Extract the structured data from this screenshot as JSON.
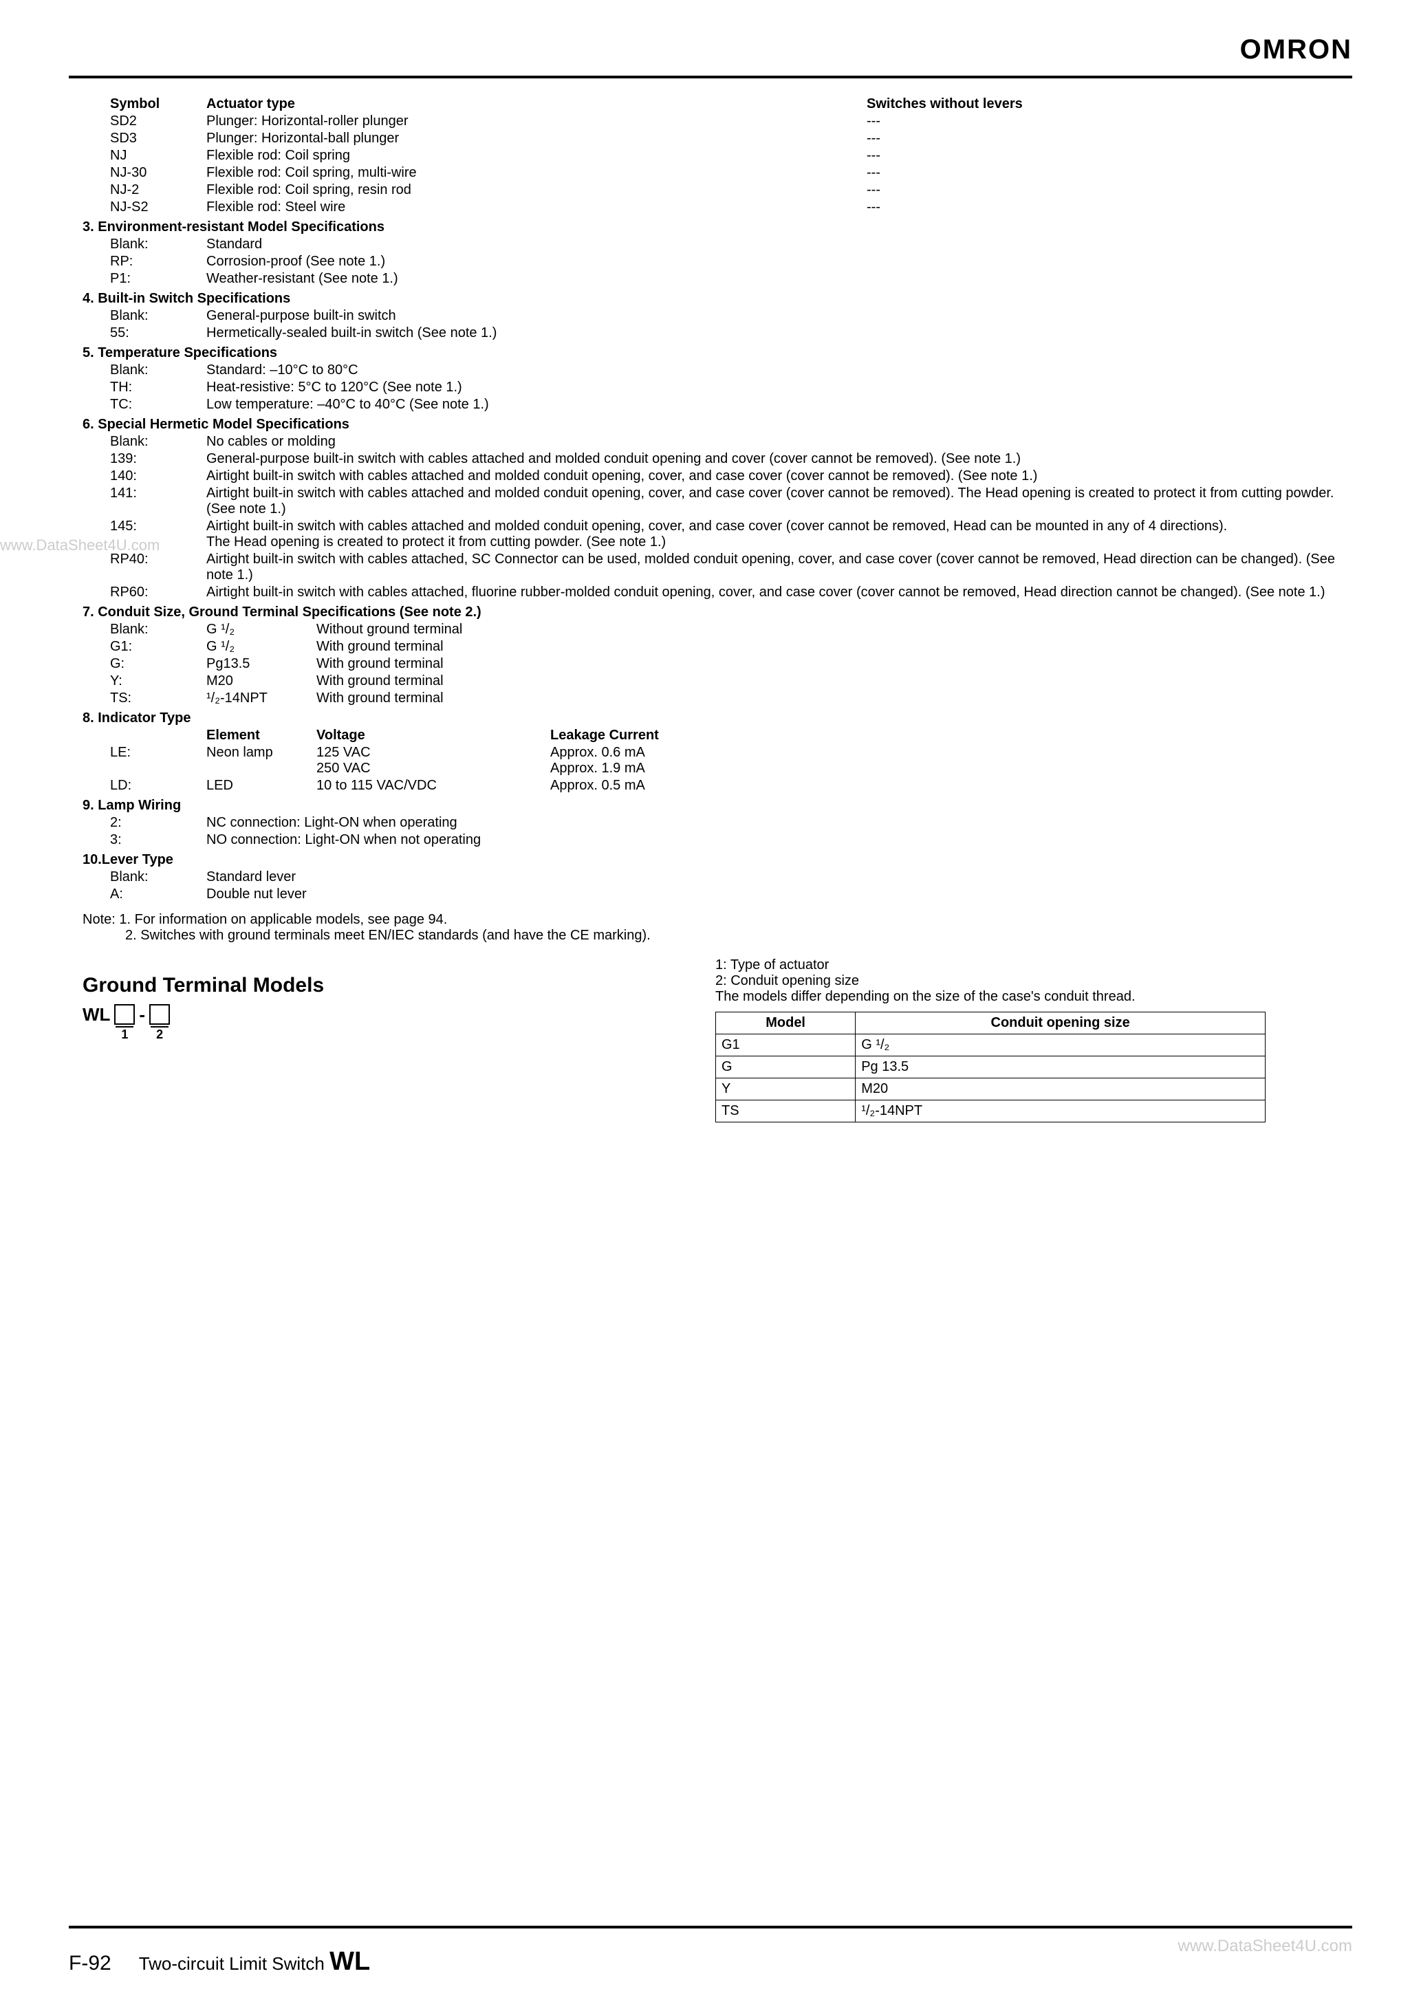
{
  "brand": "OMRON",
  "header": {
    "symbol": "Symbol",
    "actuator": "Actuator type",
    "switches": "Switches without levers"
  },
  "actuators": [
    {
      "sym": "SD2",
      "desc": "Plunger: Horizontal-roller plunger",
      "sw": "---"
    },
    {
      "sym": "SD3",
      "desc": "Plunger: Horizontal-ball plunger",
      "sw": "---"
    },
    {
      "sym": "NJ",
      "desc": "Flexible rod: Coil spring",
      "sw": "---"
    },
    {
      "sym": "NJ-30",
      "desc": "Flexible rod: Coil spring, multi-wire",
      "sw": "---"
    },
    {
      "sym": "NJ-2",
      "desc": "Flexible rod: Coil spring, resin rod",
      "sw": "---"
    },
    {
      "sym": "NJ-S2",
      "desc": "Flexible rod: Steel wire",
      "sw": "---"
    }
  ],
  "s3": {
    "title": "3.  Environment-resistant Model Specifications",
    "rows": [
      {
        "sym": "Blank:",
        "desc": "Standard"
      },
      {
        "sym": "RP:",
        "desc": "Corrosion-proof (See note 1.)"
      },
      {
        "sym": "P1:",
        "desc": "Weather-resistant (See note 1.)"
      }
    ]
  },
  "s4": {
    "title": "4.  Built-in Switch Specifications",
    "rows": [
      {
        "sym": "Blank:",
        "desc": "General-purpose built-in switch"
      },
      {
        "sym": "55:",
        "desc": "Hermetically-sealed built-in switch (See note 1.)"
      }
    ]
  },
  "s5": {
    "title": "5.  Temperature Specifications",
    "rows": [
      {
        "sym": "Blank:",
        "desc": "Standard: –10°C to 80°C"
      },
      {
        "sym": "TH:",
        "desc": "Heat-resistive: 5°C to 120°C (See note 1.)"
      },
      {
        "sym": "TC:",
        "desc": "Low temperature: –40°C to 40°C (See note 1.)"
      }
    ]
  },
  "s6": {
    "title": "6.  Special Hermetic Model Specifications",
    "rows": [
      {
        "sym": "Blank:",
        "desc": "No cables or molding"
      },
      {
        "sym": "139:",
        "desc": "General-purpose built-in switch with cables attached and molded conduit opening and cover (cover cannot be removed). (See note 1.)"
      },
      {
        "sym": "140:",
        "desc": "Airtight built-in switch with cables attached and molded conduit opening, cover, and case cover (cover cannot be removed). (See note 1.)"
      },
      {
        "sym": "141:",
        "desc": "Airtight built-in switch with cables attached and molded conduit opening, cover, and case cover (cover cannot be removed). The Head opening is created to protect it from cutting powder. (See note 1.)"
      },
      {
        "sym": "145:",
        "desc": "Airtight built-in switch with cables attached and molded conduit opening, cover, and case cover (cover cannot be removed, Head can be mounted in any of 4 directions).\nThe Head opening is created to protect it from cutting powder. (See note 1.)"
      },
      {
        "sym": "RP40:",
        "desc": "Airtight built-in switch with cables attached, SC Connector can be used, molded conduit opening, cover, and case cover (cover cannot be removed, Head direction can be changed). (See note 1.)"
      },
      {
        "sym": "RP60:",
        "desc": "Airtight built-in switch with cables attached, fluorine rubber-molded conduit opening, cover, and case cover (cover cannot be removed, Head direction cannot be changed). (See note 1.)"
      }
    ]
  },
  "s7": {
    "title": "7.  Conduit Size, Ground Terminal Specifications (See note 2.)",
    "rows": [
      {
        "sym": "Blank:",
        "size": "G ¹/₂",
        "desc": "Without ground terminal"
      },
      {
        "sym": "G1:",
        "size": "G ¹/₂",
        "desc": "With ground terminal"
      },
      {
        "sym": "G:",
        "size": "Pg13.5",
        "desc": "With ground terminal"
      },
      {
        "sym": "Y:",
        "size": "M20",
        "desc": "With ground terminal"
      },
      {
        "sym": "TS:",
        "size": "¹/₂-14NPT",
        "desc": "With ground terminal"
      }
    ]
  },
  "s8": {
    "title": "8.  Indicator Type",
    "hdr": {
      "element": "Element",
      "voltage": "Voltage",
      "leak": "Leakage Current"
    },
    "rows": [
      {
        "sym": "LE:",
        "element": "Neon lamp",
        "voltage": "125 VAC\n250 VAC",
        "leak": "Approx. 0.6 mA\nApprox. 1.9 mA"
      },
      {
        "sym": "LD:",
        "element": "LED",
        "voltage": "10 to 115 VAC/VDC",
        "leak": "Approx. 0.5 mA"
      }
    ]
  },
  "s9": {
    "title": "9.  Lamp Wiring",
    "rows": [
      {
        "sym": "2:",
        "desc": "NC connection: Light-ON when operating"
      },
      {
        "sym": "3:",
        "desc": "NO connection: Light-ON when not operating"
      }
    ]
  },
  "s10": {
    "title": "10.Lever Type",
    "rows": [
      {
        "sym": "Blank:",
        "desc": "Standard lever"
      },
      {
        "sym": "A:",
        "desc": "Double nut lever"
      }
    ]
  },
  "notes": {
    "n1": "Note: 1.  For information on applicable models, see page 94.",
    "n2": "2.  Switches with ground terminals meet EN/IEC standards (and have the CE marking)."
  },
  "gt": {
    "heading": "Ground Terminal Models",
    "wl": "WL",
    "dash": "-",
    "n1": "1",
    "n2": "2",
    "right1": "1: Type of actuator",
    "right2": "2: Conduit opening size",
    "right3": "The models differ depending on the size of the case's conduit thread.",
    "table_hdr": {
      "model": "Model",
      "size": "Conduit opening size"
    },
    "table_rows": [
      {
        "model": "G1",
        "size": "G ¹/₂"
      },
      {
        "model": "G",
        "size": "Pg 13.5"
      },
      {
        "model": "Y",
        "size": "M20"
      },
      {
        "model": "TS",
        "size": "¹/₂-14NPT"
      }
    ]
  },
  "wm_left": "www.DataSheet4U.com",
  "wm_right": "www.DataSheet4U.com",
  "footer": {
    "page": "F-92",
    "title": "Two-circuit Limit Switch",
    "wl": "WL"
  }
}
